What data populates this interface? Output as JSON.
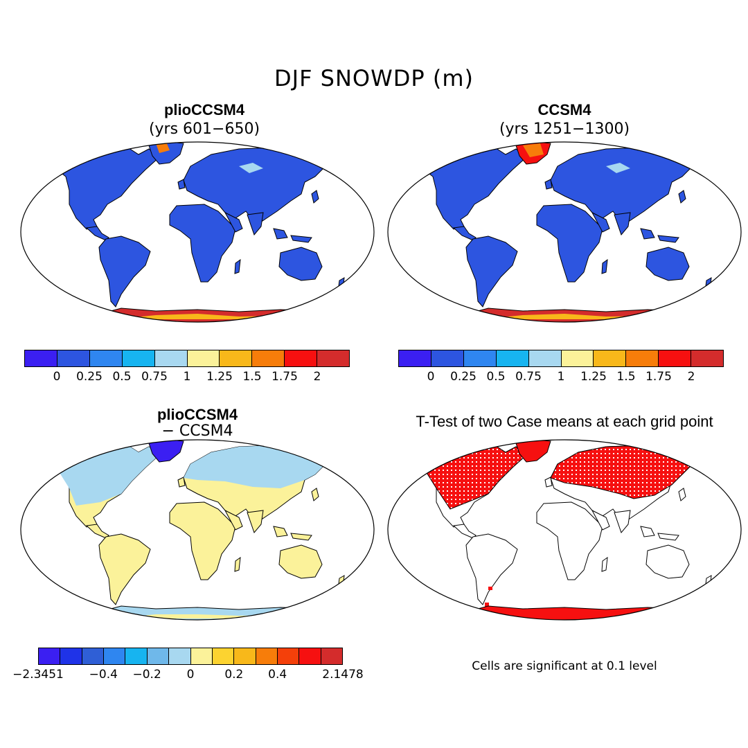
{
  "title": "DJF SNOWDP (m)",
  "panels": [
    {
      "title": "plioCCSM4",
      "subtitle": "(yrs 601−650)"
    },
    {
      "title": "CCSM4",
      "subtitle": "(yrs 1251−1300)"
    },
    {
      "title": "plioCCSM4",
      "subtitle": "− CCSM4"
    },
    {
      "title": "T-Test of two Case means at each grid point",
      "subtitle": ""
    }
  ],
  "colorbar_abs": {
    "colors": [
      "#3b1ff2",
      "#2d55e0",
      "#2f86f0",
      "#17b4f0",
      "#a8d8f0",
      "#fbf29a",
      "#f8b81a",
      "#f77d0a",
      "#f61010",
      "#d42c2c"
    ],
    "labels": [
      "0",
      "0.25",
      "0.5",
      "0.75",
      "1",
      "1.25",
      "1.5",
      "1.75",
      "2"
    ]
  },
  "colorbar_diff": {
    "colors": [
      "#3b1ff2",
      "#1f33e8",
      "#2f5fd6",
      "#2f86f0",
      "#17b4f0",
      "#6fb8ea",
      "#a8d8f0",
      "#fbf29a",
      "#fcd330",
      "#f8b81a",
      "#f77d0a",
      "#f4400a",
      "#f61010",
      "#d42c2c"
    ],
    "labels": [
      "−2.3451",
      "−0.4",
      "−0.2",
      "0",
      "0.2",
      "0.4",
      "2.1478"
    ]
  },
  "significance_note": "Cells are significant at 0.1 level",
  "map_colors": {
    "ocean": "#ffffff",
    "land_abs": "#2d55e0",
    "antarctica_abs": "#d42c2c",
    "antarctica_inner_abs": "#f8b81a",
    "greenland_p1": "#f77d0a",
    "greenland_p2": "#f61010",
    "land_diff": "#fbf29a",
    "land_diff_north": "#a8d8f0",
    "greenland_diff": "#3b1ff2",
    "significant": "#f61010"
  }
}
